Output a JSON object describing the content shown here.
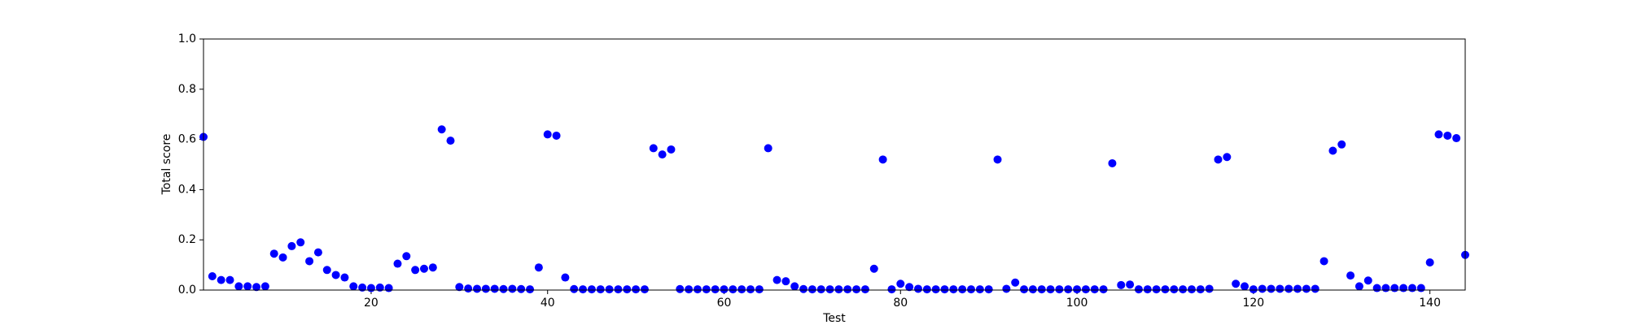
{
  "chart_data": {
    "type": "scatter",
    "xlabel": "Test",
    "ylabel": "Total score",
    "color": "#0000ff",
    "xlim": [
      1,
      144
    ],
    "xticks": [
      20,
      40,
      60,
      80,
      100,
      120,
      140
    ],
    "ylim": [
      0,
      1
    ],
    "yticks": [
      {
        "value": 0,
        "label": "0.0"
      },
      0.2,
      0.4,
      0.6,
      0.8,
      {
        "value": 1,
        "label": "1.0"
      }
    ],
    "x": [
      1,
      2,
      3,
      4,
      5,
      6,
      7,
      8,
      9,
      10,
      11,
      12,
      13,
      14,
      15,
      16,
      17,
      18,
      19,
      20,
      21,
      22,
      23,
      24,
      25,
      26,
      27,
      28,
      29,
      30,
      31,
      32,
      33,
      34,
      35,
      36,
      37,
      38,
      39,
      40,
      41,
      42,
      43,
      44,
      45,
      46,
      47,
      48,
      49,
      50,
      51,
      52,
      53,
      54,
      55,
      56,
      57,
      58,
      59,
      60,
      61,
      62,
      63,
      64,
      65,
      66,
      67,
      68,
      69,
      70,
      71,
      72,
      73,
      74,
      75,
      76,
      77,
      78,
      79,
      80,
      81,
      82,
      83,
      84,
      85,
      86,
      87,
      88,
      89,
      90,
      91,
      92,
      93,
      94,
      95,
      96,
      97,
      98,
      99,
      100,
      101,
      102,
      103,
      104,
      105,
      106,
      107,
      108,
      109,
      110,
      111,
      112,
      113,
      114,
      115,
      116,
      117,
      118,
      119,
      120,
      121,
      122,
      123,
      124,
      125,
      126,
      127,
      128,
      129,
      130,
      131,
      132,
      133,
      134,
      135,
      136,
      137,
      138,
      139,
      140,
      141,
      142,
      143,
      144
    ],
    "values": [
      0.61,
      0.055,
      0.04,
      0.04,
      0.015,
      0.015,
      0.012,
      0.015,
      0.145,
      0.13,
      0.175,
      0.19,
      0.115,
      0.15,
      0.08,
      0.06,
      0.05,
      0.015,
      0.01,
      0.008,
      0.01,
      0.008,
      0.105,
      0.135,
      0.08,
      0.085,
      0.09,
      0.64,
      0.595,
      0.012,
      0.006,
      0.005,
      0.005,
      0.005,
      0.004,
      0.005,
      0.004,
      0.003,
      0.09,
      0.62,
      0.615,
      0.05,
      0.004,
      0.003,
      0.003,
      0.003,
      0.003,
      0.003,
      0.003,
      0.003,
      0.003,
      0.565,
      0.54,
      0.56,
      0.004,
      0.003,
      0.003,
      0.003,
      0.003,
      0.003,
      0.003,
      0.003,
      0.003,
      0.003,
      0.565,
      0.04,
      0.035,
      0.015,
      0.004,
      0.003,
      0.003,
      0.003,
      0.003,
      0.003,
      0.003,
      0.003,
      0.085,
      0.52,
      0.003,
      0.025,
      0.012,
      0.005,
      0.003,
      0.003,
      0.003,
      0.003,
      0.003,
      0.003,
      0.003,
      0.003,
      0.52,
      0.005,
      0.03,
      0.003,
      0.003,
      0.003,
      0.003,
      0.003,
      0.003,
      0.003,
      0.003,
      0.003,
      0.003,
      0.505,
      0.02,
      0.022,
      0.003,
      0.003,
      0.003,
      0.003,
      0.003,
      0.003,
      0.003,
      0.003,
      0.005,
      0.52,
      0.53,
      0.025,
      0.015,
      0.003,
      0.005,
      0.005,
      0.005,
      0.005,
      0.005,
      0.005,
      0.005,
      0.115,
      0.555,
      0.58,
      0.058,
      0.015,
      0.038,
      0.008,
      0.008,
      0.008,
      0.008,
      0.008,
      0.008,
      0.11,
      0.62,
      0.615,
      0.605,
      0.14
    ]
  }
}
